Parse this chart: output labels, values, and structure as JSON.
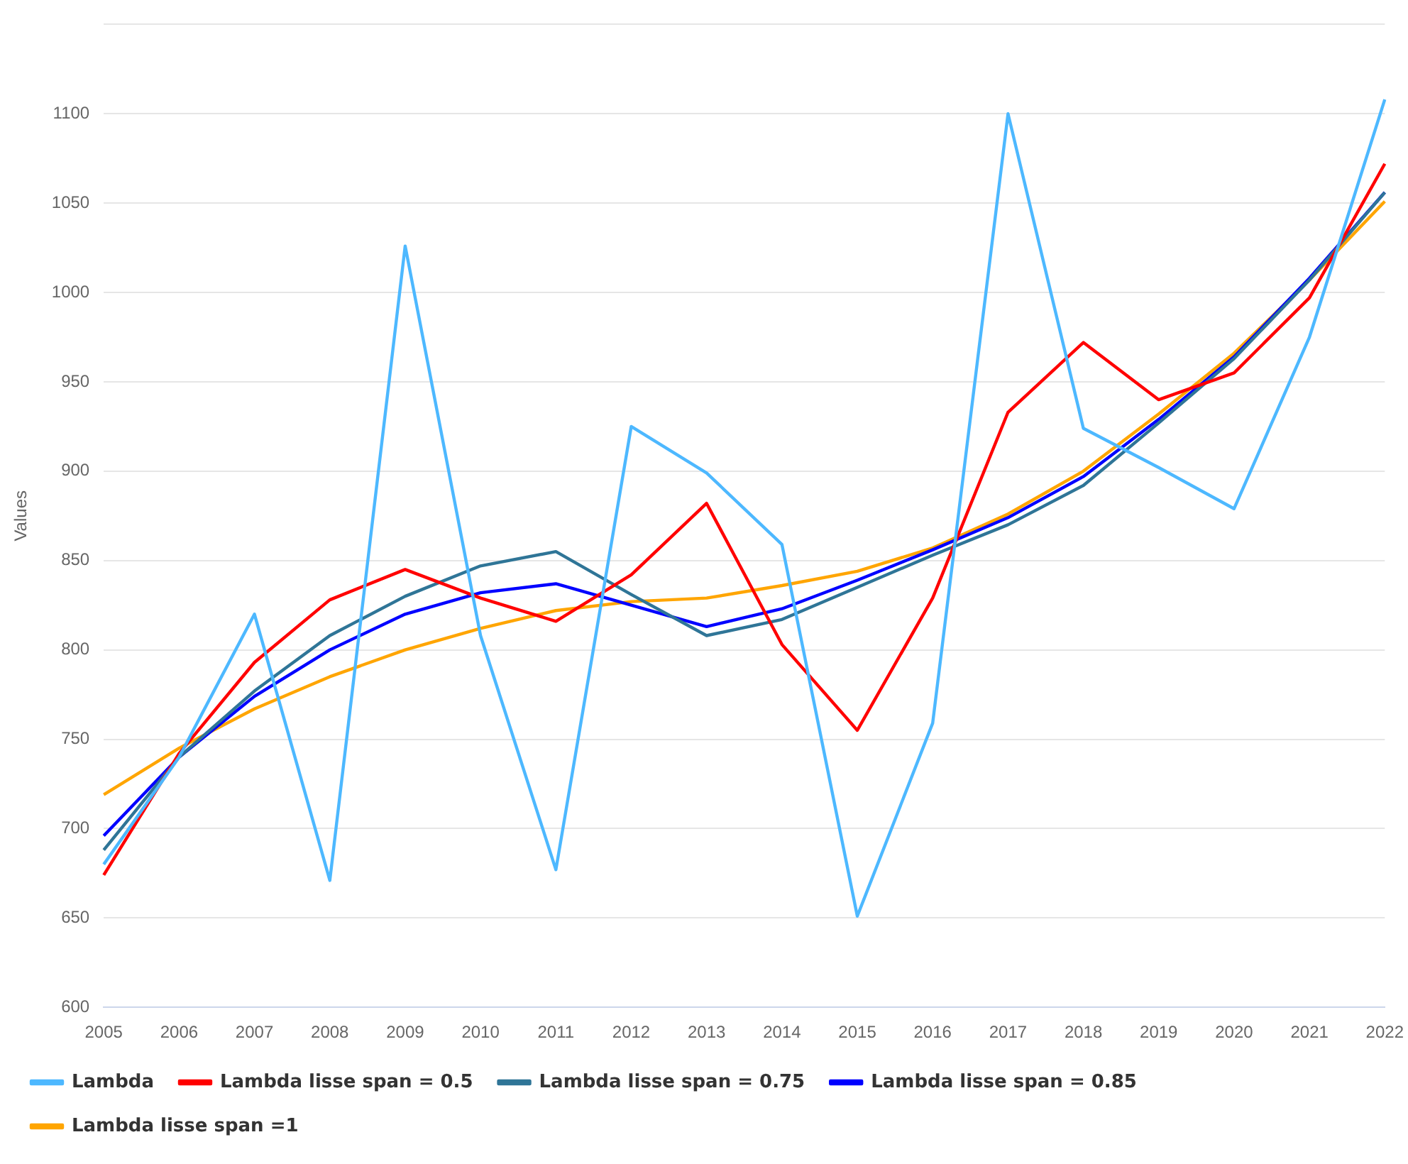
{
  "chart_data": {
    "type": "line",
    "ylabel": "Values",
    "categories": [
      "2005",
      "2006",
      "2007",
      "2008",
      "2009",
      "2010",
      "2011",
      "2012",
      "2013",
      "2014",
      "2015",
      "2016",
      "2017",
      "2018",
      "2019",
      "2020",
      "2021",
      "2022"
    ],
    "ylim": [
      600,
      1150
    ],
    "yticks": [
      600,
      650,
      700,
      750,
      800,
      850,
      900,
      950,
      1000,
      1050,
      1100,
      {
        "value": 1150,
        "label": null
      }
    ],
    "grid": "y",
    "legend": "bottom",
    "marker": "none",
    "line_style": "solid",
    "series": [
      {
        "name": "Lambda",
        "color": "#4db8ff",
        "values": [
          680,
          740,
          820,
          671,
          1026,
          808,
          677,
          925,
          899,
          859,
          651,
          759,
          1100,
          924,
          902,
          879,
          975,
          1108
        ]
      },
      {
        "name": "Lambda lisse span = 0.5",
        "color": "#ff0000",
        "values": [
          674,
          742,
          793,
          828,
          845,
          829,
          816,
          842,
          882,
          803,
          755,
          829,
          933,
          972,
          940,
          955,
          997,
          1072
        ]
      },
      {
        "name": "Lambda lisse span = 0.75",
        "color": "#2f7597",
        "values": [
          688,
          740,
          777,
          808,
          830,
          847,
          855,
          831,
          808,
          817,
          835,
          853,
          870,
          892,
          927,
          963,
          1007,
          1056
        ]
      },
      {
        "name": "Lambda lisse span = 0.85",
        "color": "#0000ff",
        "values": [
          696,
          740,
          774,
          800,
          820,
          832,
          837,
          825,
          813,
          823,
          839,
          856,
          874,
          897,
          929,
          964,
          1008,
          1056
        ]
      },
      {
        "name": "Lambda lisse span =1",
        "color": "#ffa500",
        "values": [
          719,
          745,
          767,
          785,
          800,
          812,
          822,
          827,
          829,
          836,
          844,
          857,
          876,
          900,
          932,
          966,
          1007,
          1051
        ]
      }
    ]
  }
}
